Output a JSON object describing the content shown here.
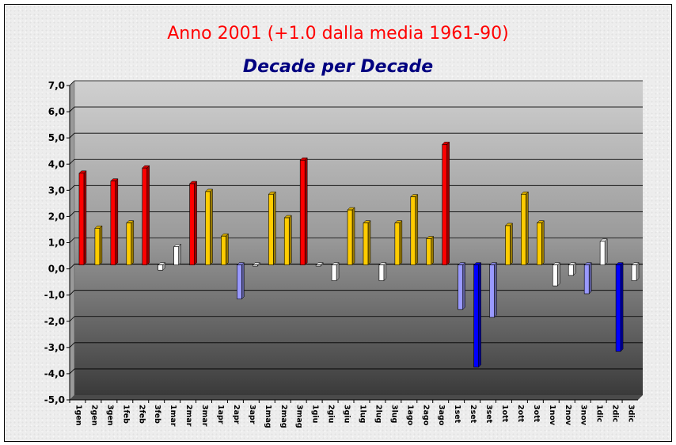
{
  "chart_data": {
    "type": "bar",
    "title": "Anno 2001 (+1.0 dalla media 1961-90)",
    "subtitle": "Decade per Decade",
    "xlabel": "",
    "ylabel": "",
    "ylim": [
      -5,
      7
    ],
    "ytick_labels": [
      "-5,0",
      "-4,0",
      "-3,0",
      "-2,0",
      "-1,0",
      "0,0",
      "1,0",
      "2,0",
      "3,0",
      "4,0",
      "5,0",
      "6,0",
      "7,0"
    ],
    "grid": true,
    "categories": [
      "1gen",
      "2gen",
      "3gen",
      "1feb",
      "2feb",
      "3feb",
      "1mar",
      "2mar",
      "3mar",
      "1apr",
      "2apr",
      "3apr",
      "1mag",
      "2mag",
      "3mag",
      "1giu",
      "2giu",
      "3giu",
      "1lug",
      "2lug",
      "3lug",
      "1ago",
      "2ago",
      "3ago",
      "1set",
      "2set",
      "3set",
      "1ott",
      "2ott",
      "3ott",
      "1nov",
      "2nov",
      "3nov",
      "1dic",
      "2dic",
      "3dic"
    ],
    "values": [
      3.5,
      1.4,
      3.2,
      1.6,
      3.7,
      -0.2,
      0.7,
      3.1,
      2.8,
      1.1,
      -1.3,
      0.0,
      2.7,
      1.8,
      4.0,
      0.0,
      -0.6,
      2.1,
      1.6,
      -0.6,
      1.6,
      2.6,
      1.0,
      4.6,
      -1.7,
      -3.9,
      -2.0,
      1.5,
      2.7,
      1.6,
      -0.8,
      -0.4,
      -1.1,
      0.9,
      -3.3,
      -0.6
    ],
    "color_scale": {
      "strong_positive": "#ff0000",
      "positive": "#ffcc00",
      "near_zero": "#ffffff",
      "negative": "#9999ff",
      "strong_negative": "#0000ff"
    }
  }
}
